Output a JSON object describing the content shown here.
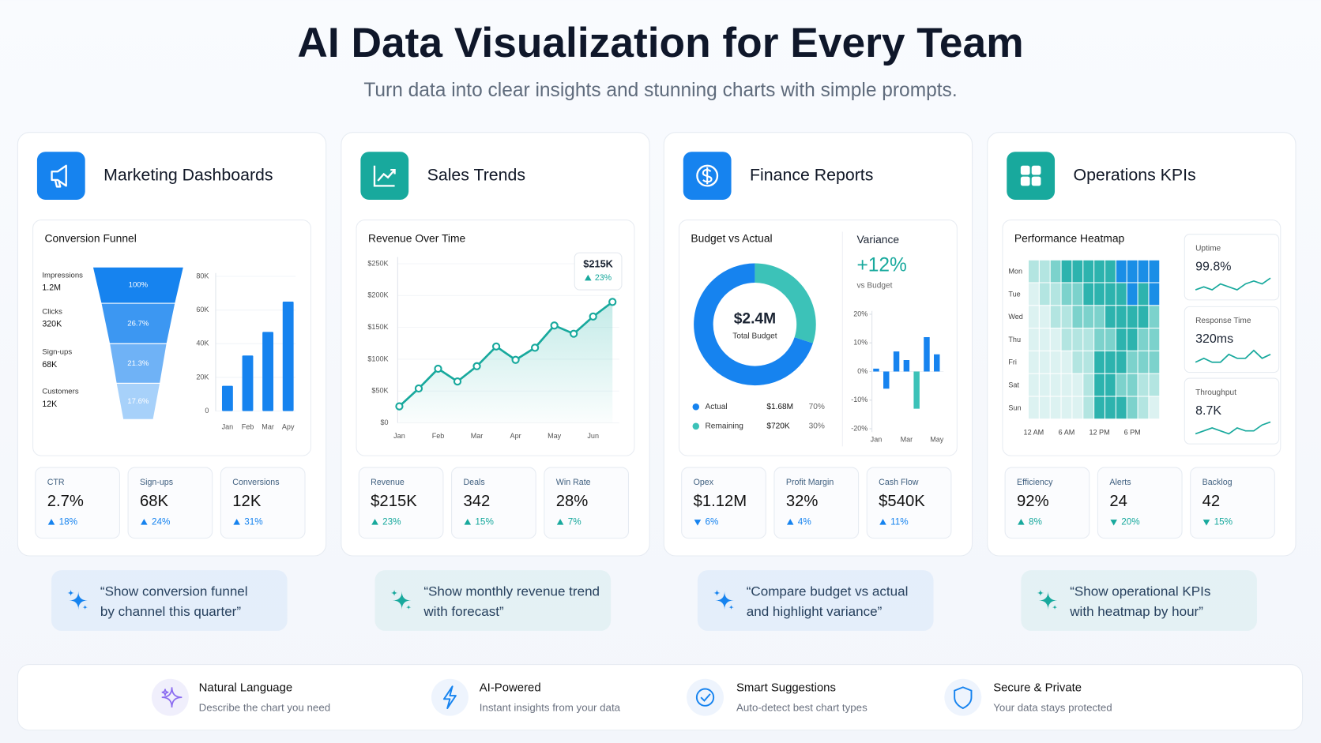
{
  "header": {
    "title": "AI Data Visualization for Every Team",
    "subtitle": "Turn data into clear insights and stunning charts with simple prompts."
  },
  "cards": [
    {
      "title": "Marketing Dashboards",
      "color": "#1683ef",
      "panel": {
        "type": "funnel",
        "title": "Conversion Funnel",
        "stages": [
          {
            "name": "Impressions",
            "value": "1.2M",
            "share": "100%"
          },
          {
            "name": "Clicks",
            "value": "320K",
            "share": "26.7%"
          },
          {
            "name": "Sign-ups",
            "value": "68K",
            "share": "21.3%"
          },
          {
            "name": "Customers",
            "value": "12K",
            "share": "17.6%"
          }
        ],
        "colors": [
          "#1683ef",
          "#3c97f2",
          "#6fb2f6",
          "#a7d1fa"
        ],
        "bars": {
          "categories": [
            "Jan",
            "Feb",
            "Mar",
            "Apy"
          ],
          "values": [
            15000,
            33000,
            47000,
            65000
          ],
          "ylim": [
            0,
            80000
          ],
          "yticks": [
            0,
            {
              "value": 20000,
              "label": "20K"
            },
            {
              "value": 40000,
              "label": "40K"
            },
            {
              "value": 60000,
              "label": "60K"
            },
            {
              "value": 80000,
              "label": "80K"
            }
          ]
        }
      },
      "kpis": [
        {
          "label": "CTR",
          "value": "2.7%",
          "change": "18%",
          "direction": "up"
        },
        {
          "label": "Sign-ups",
          "value": "68K",
          "change": "24%",
          "direction": "up"
        },
        {
          "label": "Conversions",
          "value": "12K",
          "change": "31%",
          "direction": "up"
        }
      ],
      "prompt": [
        "“Show conversion funnel",
        "by channel this quarter”"
      ]
    },
    {
      "title": "Sales Trends",
      "color": "#18a99d",
      "panel": {
        "type": "line",
        "title": "Revenue Over Time",
        "categories": [
          "Jan",
          null,
          "Feb",
          null,
          "Mar",
          null,
          "Apr",
          null,
          "May",
          null,
          "Jun",
          null
        ],
        "values": [
          26000,
          54000,
          85000,
          65000,
          89000,
          120000,
          99000,
          118000,
          153000,
          140000,
          167000,
          190000
        ],
        "ylim": [
          0,
          250000
        ],
        "yticks": [
          {
            "value": 0,
            "label": "$0"
          },
          {
            "value": 50000,
            "label": "$50K"
          },
          {
            "value": 100000,
            "label": "$100K"
          },
          {
            "value": 150000,
            "label": "$150K"
          },
          {
            "value": 200000,
            "label": "$200K"
          },
          {
            "value": 250000,
            "label": "$250K"
          }
        ],
        "tooltip": {
          "value": "$215K",
          "change": "23%",
          "direction": "up"
        }
      },
      "kpis": [
        {
          "label": "Revenue",
          "value": "$215K",
          "change": "23%",
          "direction": "up"
        },
        {
          "label": "Deals",
          "value": "342",
          "change": "15%",
          "direction": "up"
        },
        {
          "label": "Win Rate",
          "value": "28%",
          "change": "7%",
          "direction": "up"
        }
      ],
      "prompt": [
        "“Show monthly revenue trend",
        "with forecast”"
      ]
    },
    {
      "title": "Finance Reports",
      "color": "#1683ef",
      "panel": {
        "type": "donut",
        "title": "Budget vs Actual",
        "center_value": "$2.4M",
        "center_label": "Total Budget",
        "slices": [
          {
            "name": "Actual",
            "amount": "$1.68M",
            "value": 70,
            "value_label": "70%",
            "color": "#1683ef"
          },
          {
            "name": "Remaining",
            "amount": "$720K",
            "value": 30,
            "value_label": "30%",
            "color": "#3cc2b8"
          }
        ],
        "variance": {
          "title": "Variance",
          "value": "+12%",
          "note": "vs Budget",
          "categories": [
            "Jan",
            null,
            null,
            "Mar",
            null,
            null,
            "May"
          ],
          "values": [
            1,
            -6,
            7,
            4,
            -13,
            12,
            6
          ],
          "colors": [
            "#1683ef",
            "#1683ef",
            "#1683ef",
            "#1683ef",
            "#3cc2b8",
            "#1683ef",
            "#1683ef"
          ],
          "ylim": [
            -20,
            20
          ],
          "yticks": [
            {
              "value": -20,
              "label": "-20%"
            },
            {
              "value": -10,
              "label": "-10%"
            },
            {
              "value": 0,
              "label": "0%"
            },
            {
              "value": 10,
              "label": "10%"
            },
            {
              "value": 20,
              "label": "20%"
            }
          ]
        }
      },
      "kpis": [
        {
          "label": "Opex",
          "value": "$1.12M",
          "change": "6%",
          "direction": "down"
        },
        {
          "label": "Profit Margin",
          "value": "32%",
          "change": "4%",
          "direction": "up"
        },
        {
          "label": "Cash Flow",
          "value": "$540K",
          "change": "11%",
          "direction": "up"
        }
      ],
      "prompt": [
        "“Compare budget vs actual",
        "and highlight variance”"
      ]
    },
    {
      "title": "Operations KPIs",
      "color": "#18a99d",
      "panel": {
        "type": "heatmap",
        "title": "Performance Heatmap",
        "rows": [
          "Mon",
          "Tue",
          "Wed",
          "Thu",
          "Fri",
          "Sat",
          "Sun"
        ],
        "columns": [
          "12 AM",
          null,
          null,
          "6 AM",
          null,
          null,
          "12 PM",
          null,
          null,
          "6 PM",
          null,
          null
        ],
        "values": [
          [
            2,
            2,
            3,
            4,
            4,
            4,
            4,
            4,
            5,
            5,
            5,
            5
          ],
          [
            1,
            2,
            2,
            3,
            3,
            4,
            4,
            4,
            4,
            5,
            4,
            5
          ],
          [
            1,
            1,
            2,
            2,
            3,
            3,
            3,
            4,
            4,
            4,
            4,
            3
          ],
          [
            1,
            1,
            1,
            2,
            2,
            2,
            3,
            3,
            4,
            4,
            3,
            3
          ],
          [
            1,
            1,
            1,
            1,
            2,
            2,
            4,
            4,
            4,
            3,
            3,
            3
          ],
          [
            1,
            1,
            1,
            1,
            1,
            2,
            4,
            4,
            3,
            3,
            2,
            2
          ],
          [
            1,
            1,
            1,
            1,
            1,
            2,
            4,
            4,
            4,
            3,
            2,
            1
          ]
        ],
        "colors": [
          "#dcf2f1",
          "#b3e5e1",
          "#7cd2cc",
          "#2db3ae",
          "#1a8ee6"
        ],
        "metrics": [
          {
            "label": "Uptime",
            "value": "99.8%",
            "trend": [
              3,
              4,
              3,
              5,
              4,
              3,
              5,
              6,
              5,
              7
            ]
          },
          {
            "label": "Response Time",
            "value": "320ms",
            "trend": [
              4,
              5,
              4,
              4,
              6,
              5,
              5,
              7,
              5,
              6
            ]
          },
          {
            "label": "Throughput",
            "value": "8.7K",
            "trend": [
              3,
              4,
              5,
              4,
              3,
              5,
              4,
              4,
              6,
              7
            ]
          }
        ]
      },
      "kpis": [
        {
          "label": "Efficiency",
          "value": "92%",
          "change": "8%",
          "direction": "up"
        },
        {
          "label": "Alerts",
          "value": "24",
          "change": "20%",
          "direction": "down"
        },
        {
          "label": "Backlog",
          "value": "42",
          "change": "15%",
          "direction": "down"
        }
      ],
      "prompt": [
        "“Show operational KPIs",
        "with heatmap by hour”"
      ]
    }
  ],
  "features": [
    {
      "title": "Natural Language",
      "text": "Describe the chart you need"
    },
    {
      "title": "AI-Powered",
      "text": "Instant insights from your data"
    },
    {
      "title": "Smart Suggestions",
      "text": "Auto-detect best chart types"
    },
    {
      "title": "Secure & Private",
      "text": "Your data stays protected"
    }
  ]
}
